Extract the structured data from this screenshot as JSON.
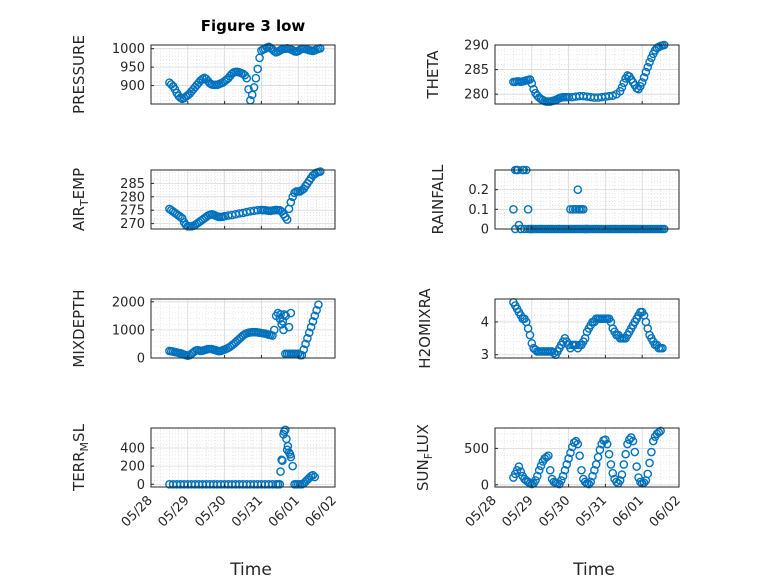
{
  "figure": {
    "title": "Figure 3 low",
    "xlabel": "Time",
    "x_tick_labels": [
      "05/28",
      "05/29",
      "05/30",
      "05/31",
      "06/01",
      "06/02"
    ],
    "marker_color": "#0072BD",
    "axis_color": "#262626",
    "grid_color": "#d8d8d8"
  },
  "chart_data": [
    {
      "type": "scatter",
      "ylabel": "PRESSURE",
      "title": "Figure 3 low",
      "ylim": [
        850,
        1010
      ],
      "yticks": [
        900,
        950,
        1000
      ],
      "grid": true,
      "x": [
        0.5,
        0.55,
        0.6,
        0.65,
        0.7,
        0.75,
        0.8,
        0.85,
        0.9,
        0.95,
        1.0,
        1.05,
        1.1,
        1.15,
        1.2,
        1.25,
        1.3,
        1.35,
        1.4,
        1.45,
        1.5,
        1.55,
        1.6,
        1.65,
        1.7,
        1.75,
        1.8,
        1.85,
        1.9,
        1.95,
        2.0,
        2.05,
        2.1,
        2.15,
        2.2,
        2.25,
        2.3,
        2.35,
        2.4,
        2.45,
        2.5,
        2.55,
        2.6,
        2.65,
        2.7,
        2.75,
        2.8,
        2.85,
        2.9,
        2.95,
        3.0,
        3.05,
        3.1,
        3.15,
        3.2,
        3.25,
        3.3,
        3.35,
        3.4,
        3.45,
        3.5,
        3.55,
        3.6,
        3.65,
        3.7,
        3.75,
        3.8,
        3.85,
        3.9,
        3.95,
        4.0,
        4.05,
        4.1,
        4.15,
        4.2,
        4.25,
        4.3,
        4.35,
        4.4,
        4.45,
        4.5,
        4.55,
        4.6
      ],
      "y": [
        908,
        903,
        898,
        890,
        880,
        872,
        867,
        864,
        866,
        870,
        874,
        878,
        884,
        890,
        896,
        902,
        908,
        914,
        918,
        921,
        918,
        912,
        906,
        903,
        902,
        902,
        902,
        904,
        906,
        908,
        912,
        916,
        920,
        926,
        932,
        936,
        937,
        937,
        936,
        934,
        932,
        928,
        920,
        890,
        860,
        875,
        895,
        920,
        945,
        975,
        995,
        998,
        1000,
        1003,
        1005,
        1002,
        998,
        993,
        990,
        992,
        995,
        998,
        1000,
        1000,
        1001,
        1000,
        998,
        996,
        993,
        992,
        994,
        997,
        1000,
        1000,
        999,
        998,
        996,
        995,
        994,
        996,
        998,
        1000,
        1001
      ]
    },
    {
      "type": "scatter",
      "ylabel": "THETA",
      "ylim": [
        278,
        290
      ],
      "yticks": [
        280,
        285,
        290
      ],
      "grid": true,
      "x": [
        0.5,
        0.55,
        0.6,
        0.65,
        0.7,
        0.75,
        0.8,
        0.85,
        0.9,
        0.95,
        1.0,
        1.05,
        1.1,
        1.15,
        1.2,
        1.25,
        1.3,
        1.35,
        1.4,
        1.45,
        1.5,
        1.55,
        1.6,
        1.65,
        1.7,
        1.75,
        1.8,
        1.85,
        1.9,
        1.95,
        2.0,
        2.1,
        2.2,
        2.3,
        2.4,
        2.5,
        2.6,
        2.7,
        2.8,
        2.9,
        3.0,
        3.1,
        3.2,
        3.3,
        3.4,
        3.45,
        3.5,
        3.55,
        3.6,
        3.65,
        3.7,
        3.75,
        3.8,
        3.85,
        3.9,
        3.95,
        4.0,
        4.05,
        4.1,
        4.15,
        4.2,
        4.25,
        4.3,
        4.35,
        4.4,
        4.45,
        4.5,
        4.55,
        4.6
      ],
      "y": [
        282.5,
        282.5,
        282.6,
        282.6,
        282.5,
        282.6,
        282.7,
        282.8,
        282.9,
        283.0,
        282.2,
        281.0,
        280.2,
        279.7,
        279.3,
        279.0,
        278.8,
        278.6,
        278.5,
        278.5,
        278.5,
        278.6,
        278.7,
        278.8,
        279.0,
        279.2,
        279.3,
        279.4,
        279.4,
        279.4,
        279.4,
        279.4,
        279.5,
        279.6,
        279.6,
        279.5,
        279.4,
        279.3,
        279.3,
        279.4,
        279.5,
        279.6,
        279.7,
        280.0,
        280.6,
        281.4,
        282.3,
        283.2,
        283.8,
        283.6,
        283.0,
        282.4,
        281.8,
        281.2,
        281.0,
        281.6,
        282.4,
        283.4,
        284.5,
        285.5,
        286.5,
        287.4,
        288.2,
        288.9,
        289.4,
        289.6,
        289.8,
        289.9,
        290.0
      ]
    },
    {
      "type": "scatter",
      "ylabel": "AIR_TEMP",
      "ylim": [
        268,
        290
      ],
      "yticks": [
        270,
        275,
        280,
        285
      ],
      "grid": true,
      "x": [
        0.5,
        0.55,
        0.6,
        0.65,
        0.7,
        0.75,
        0.8,
        0.85,
        0.9,
        0.95,
        1.0,
        1.05,
        1.1,
        1.15,
        1.2,
        1.25,
        1.3,
        1.35,
        1.4,
        1.45,
        1.5,
        1.55,
        1.6,
        1.65,
        1.7,
        1.75,
        1.8,
        1.85,
        1.9,
        1.95,
        2.0,
        2.1,
        2.2,
        2.3,
        2.4,
        2.5,
        2.6,
        2.7,
        2.8,
        2.9,
        3.0,
        3.05,
        3.1,
        3.15,
        3.2,
        3.25,
        3.3,
        3.35,
        3.4,
        3.45,
        3.5,
        3.55,
        3.6,
        3.65,
        3.7,
        3.75,
        3.8,
        3.85,
        3.9,
        3.95,
        4.0,
        4.05,
        4.1,
        4.15,
        4.2,
        4.25,
        4.3,
        4.35,
        4.4,
        4.45,
        4.5,
        4.55,
        4.6
      ],
      "y": [
        275.5,
        275.0,
        274.5,
        274.0,
        273.5,
        273.0,
        272.5,
        272.0,
        270.5,
        269.5,
        269.0,
        269.0,
        269.0,
        269.2,
        269.5,
        270.0,
        270.5,
        271.0,
        271.5,
        272.0,
        272.5,
        273.0,
        273.3,
        273.5,
        273.3,
        273.0,
        272.7,
        272.5,
        272.5,
        272.6,
        272.8,
        273.0,
        273.2,
        273.5,
        273.8,
        274.0,
        274.3,
        274.6,
        274.8,
        275.0,
        275.1,
        275.0,
        275.0,
        274.9,
        274.8,
        274.8,
        274.9,
        275.0,
        275.1,
        275.0,
        275.0,
        274.5,
        273.5,
        272.5,
        271.5,
        275.5,
        278.0,
        280.0,
        281.5,
        282.0,
        282.0,
        282.0,
        282.5,
        283.0,
        284.0,
        285.0,
        286.0,
        287.0,
        288.0,
        288.5,
        289.0,
        289.2,
        289.4
      ]
    },
    {
      "type": "scatter",
      "ylabel": "RAINFALL",
      "ylim": [
        0,
        0.3
      ],
      "yticks": [
        0,
        0.1,
        0.2
      ],
      "grid": true,
      "x": [
        0.5,
        0.55,
        0.6,
        0.65,
        0.7,
        0.75,
        0.8,
        0.85,
        0.9,
        0.95,
        1.0,
        1.05,
        1.1,
        1.15,
        1.2,
        1.25,
        1.3,
        1.35,
        1.4,
        1.45,
        1.5,
        1.55,
        1.6,
        1.65,
        1.7,
        1.75,
        1.8,
        1.85,
        1.9,
        1.95,
        2.0,
        2.05,
        2.1,
        2.15,
        2.2,
        2.25,
        2.3,
        2.35,
        2.4,
        2.45,
        2.5,
        2.55,
        2.6,
        2.65,
        2.7,
        2.75,
        2.8,
        2.85,
        2.9,
        2.95,
        3.0,
        3.05,
        3.1,
        3.15,
        3.2,
        3.25,
        3.3,
        3.35,
        3.4,
        3.45,
        3.5,
        3.55,
        3.6,
        3.65,
        3.7,
        3.75,
        3.8,
        3.85,
        3.9,
        3.95,
        4.0,
        4.05,
        4.1,
        4.15,
        4.2,
        4.25,
        4.3,
        4.35,
        4.4,
        4.45,
        4.5,
        4.55,
        4.6,
        0.55,
        0.62,
        0.7,
        0.78,
        0.9,
        0.98,
        1.0,
        2.05,
        2.12,
        2.18,
        2.22,
        2.25,
        2.28,
        2.3,
        2.35,
        2.4,
        2.45,
        2.5
      ],
      "y": [
        0.1,
        0.3,
        0.3,
        0.02,
        0.0,
        0.3,
        0.0,
        0.3,
        0.1,
        0.0,
        0.0,
        0.0,
        0.0,
        0.0,
        0.0,
        0.0,
        0.0,
        0.0,
        0.0,
        0.0,
        0.0,
        0.0,
        0.0,
        0.0,
        0.0,
        0.0,
        0.0,
        0.0,
        0.0,
        0.0,
        0.0,
        0.0,
        0.0,
        0.0,
        0.0,
        0.0,
        0.0,
        0.0,
        0.0,
        0.0,
        0.0,
        0.0,
        0.0,
        0.0,
        0.0,
        0.0,
        0.0,
        0.0,
        0.0,
        0.0,
        0.0,
        0.0,
        0.0,
        0.0,
        0.0,
        0.0,
        0.0,
        0.0,
        0.0,
        0.0,
        0.0,
        0.0,
        0.0,
        0.0,
        0.0,
        0.0,
        0.0,
        0.0,
        0.0,
        0.0,
        0.0,
        0.0,
        0.0,
        0.0,
        0.0,
        0.0,
        0.0,
        0.0,
        0.0,
        0.0,
        0.0,
        0.0,
        0.0,
        0.0,
        0.3,
        0.0,
        0.3,
        0.0,
        0.0,
        0.0,
        0.1,
        0.1,
        0.1,
        0.1,
        0.2,
        0.1,
        0.1,
        0.1,
        0.1,
        0.0,
        0.0
      ]
    },
    {
      "type": "scatter",
      "ylabel": "MIXDEPTH",
      "ylim": [
        0,
        2100
      ],
      "yticks": [
        0,
        1000,
        2000
      ],
      "grid": true,
      "x": [
        0.5,
        0.55,
        0.6,
        0.65,
        0.7,
        0.75,
        0.8,
        0.85,
        0.9,
        0.95,
        1.0,
        1.05,
        1.1,
        1.15,
        1.2,
        1.25,
        1.3,
        1.35,
        1.4,
        1.45,
        1.5,
        1.55,
        1.6,
        1.65,
        1.7,
        1.75,
        1.8,
        1.85,
        1.9,
        1.95,
        2.0,
        2.05,
        2.1,
        2.15,
        2.2,
        2.25,
        2.3,
        2.35,
        2.4,
        2.45,
        2.5,
        2.55,
        2.6,
        2.65,
        2.7,
        2.75,
        2.8,
        2.85,
        2.9,
        2.95,
        3.0,
        3.05,
        3.1,
        3.15,
        3.2,
        3.25,
        3.3,
        3.35,
        3.4,
        3.45,
        3.5,
        3.55,
        3.6,
        3.65,
        3.7,
        3.75,
        3.8,
        3.85,
        3.9,
        3.95,
        4.0,
        4.05,
        4.1,
        4.15,
        4.2,
        4.25,
        4.3,
        4.35,
        4.4,
        4.45,
        4.5,
        4.55,
        3.52,
        3.58,
        3.62,
        3.66,
        3.75,
        3.8
      ],
      "y": [
        250,
        240,
        230,
        210,
        200,
        180,
        170,
        150,
        120,
        100,
        80,
        100,
        150,
        200,
        250,
        280,
        270,
        250,
        260,
        280,
        300,
        320,
        320,
        320,
        300,
        280,
        260,
        240,
        250,
        280,
        300,
        330,
        360,
        400,
        450,
        500,
        560,
        620,
        680,
        740,
        800,
        850,
        880,
        900,
        910,
        920,
        920,
        920,
        910,
        900,
        890,
        880,
        870,
        850,
        830,
        820,
        800,
        1000,
        1500,
        1600,
        1400,
        1200,
        1000,
        150,
        150,
        150,
        150,
        150,
        150,
        150,
        150,
        100,
        100,
        300,
        500,
        700,
        900,
        1100,
        1300,
        1500,
        1700,
        1900,
        1550,
        1300,
        1550,
        1500,
        1100,
        1600
      ]
    },
    {
      "type": "scatter",
      "ylabel": "H2OMIXRA",
      "ylim": [
        2.9,
        4.7
      ],
      "yticks": [
        3,
        4
      ],
      "grid": true,
      "x": [
        0.5,
        0.55,
        0.6,
        0.65,
        0.7,
        0.75,
        0.8,
        0.85,
        0.9,
        0.95,
        1.0,
        1.05,
        1.1,
        1.15,
        1.2,
        1.25,
        1.3,
        1.35,
        1.4,
        1.45,
        1.5,
        1.55,
        1.6,
        1.65,
        1.7,
        1.75,
        1.8,
        1.85,
        1.9,
        1.95,
        2.0,
        2.05,
        2.1,
        2.15,
        2.2,
        2.25,
        2.3,
        2.35,
        2.4,
        2.45,
        2.5,
        2.55,
        2.6,
        2.65,
        2.7,
        2.75,
        2.8,
        2.85,
        2.9,
        2.95,
        3.0,
        3.05,
        3.1,
        3.15,
        3.2,
        3.25,
        3.3,
        3.35,
        3.4,
        3.45,
        3.5,
        3.55,
        3.6,
        3.65,
        3.7,
        3.75,
        3.8,
        3.85,
        3.9,
        3.95,
        4.0,
        4.05,
        4.1,
        4.15,
        4.2,
        4.25,
        4.3,
        4.35,
        4.4,
        4.45,
        4.5,
        4.55
      ],
      "y": [
        4.6,
        4.5,
        4.4,
        4.3,
        4.2,
        4.1,
        4.1,
        4.0,
        3.8,
        3.6,
        3.35,
        3.2,
        3.15,
        3.1,
        3.1,
        3.1,
        3.1,
        3.1,
        3.1,
        3.1,
        3.1,
        3.1,
        3.05,
        3.0,
        3.1,
        3.2,
        3.3,
        3.4,
        3.5,
        3.4,
        3.3,
        3.2,
        3.3,
        3.3,
        3.3,
        3.2,
        3.3,
        3.3,
        3.4,
        3.5,
        3.7,
        3.8,
        3.9,
        4.0,
        4.0,
        4.1,
        4.1,
        4.1,
        4.1,
        4.1,
        4.1,
        4.1,
        4.1,
        4.0,
        3.8,
        3.7,
        3.6,
        3.6,
        3.5,
        3.5,
        3.5,
        3.5,
        3.6,
        3.7,
        3.8,
        3.9,
        4.0,
        4.1,
        4.2,
        4.3,
        4.3,
        4.2,
        4.0,
        3.8,
        3.6,
        3.5,
        3.4,
        3.3,
        3.3,
        3.2,
        3.2,
        3.2
      ]
    },
    {
      "type": "scatter",
      "ylabel": "TERR_MSL",
      "ylim": [
        -30,
        620
      ],
      "yticks": [
        0,
        200,
        400
      ],
      "grid": true,
      "x": [
        0.5,
        0.6,
        0.7,
        0.8,
        0.9,
        1.0,
        1.1,
        1.2,
        1.3,
        1.4,
        1.5,
        1.6,
        1.7,
        1.8,
        1.9,
        2.0,
        2.1,
        2.2,
        2.3,
        2.4,
        2.5,
        2.6,
        2.7,
        2.8,
        2.9,
        3.0,
        3.1,
        3.2,
        3.3,
        3.4,
        3.45,
        3.5,
        3.52,
        3.55,
        3.57,
        3.6,
        3.62,
        3.65,
        3.68,
        3.7,
        3.72,
        3.75,
        3.78,
        3.8,
        3.85,
        3.9,
        3.95,
        4.0,
        4.05,
        4.1,
        4.15,
        4.2,
        4.25,
        4.3,
        4.35,
        4.4,
        4.45
      ],
      "y": [
        0,
        0,
        0,
        0,
        0,
        0,
        0,
        0,
        0,
        0,
        0,
        0,
        0,
        0,
        0,
        0,
        0,
        0,
        0,
        0,
        0,
        0,
        0,
        0,
        0,
        0,
        0,
        0,
        0,
        0,
        0,
        0,
        140,
        270,
        260,
        550,
        580,
        600,
        500,
        380,
        420,
        350,
        330,
        300,
        200,
        0,
        0,
        0,
        0,
        0,
        10,
        30,
        50,
        70,
        90,
        100,
        80
      ]
    },
    {
      "type": "scatter",
      "ylabel": "SUN_FLUX",
      "ylim": [
        -30,
        780
      ],
      "yticks": [
        0,
        500
      ],
      "grid": true,
      "x": [
        0.5,
        0.55,
        0.6,
        0.65,
        0.7,
        0.75,
        0.8,
        0.85,
        0.9,
        0.95,
        1.0,
        1.05,
        1.1,
        1.15,
        1.2,
        1.25,
        1.3,
        1.35,
        1.4,
        1.45,
        1.5,
        1.55,
        1.6,
        1.65,
        1.7,
        1.75,
        1.8,
        1.85,
        1.9,
        1.95,
        2.0,
        2.05,
        2.1,
        2.15,
        2.2,
        2.25,
        2.3,
        2.35,
        2.4,
        2.45,
        2.5,
        2.55,
        2.6,
        2.65,
        2.7,
        2.75,
        2.8,
        2.85,
        2.9,
        2.95,
        3.0,
        3.05,
        3.1,
        3.15,
        3.2,
        3.25,
        3.3,
        3.35,
        3.4,
        3.45,
        3.5,
        3.55,
        3.6,
        3.65,
        3.7,
        3.75,
        3.8,
        3.85,
        3.9,
        3.95,
        4.0,
        4.05,
        4.1,
        4.15,
        4.2,
        4.25,
        4.3,
        4.35,
        4.4,
        4.45,
        4.5
      ],
      "y": [
        100,
        150,
        200,
        250,
        180,
        120,
        80,
        60,
        40,
        20,
        10,
        20,
        60,
        120,
        200,
        260,
        320,
        360,
        380,
        400,
        200,
        80,
        40,
        30,
        20,
        10,
        60,
        120,
        200,
        280,
        360,
        440,
        520,
        580,
        600,
        560,
        400,
        200,
        80,
        40,
        20,
        10,
        40,
        120,
        200,
        280,
        380,
        480,
        560,
        610,
        620,
        560,
        420,
        280,
        160,
        80,
        40,
        20,
        60,
        140,
        280,
        420,
        560,
        620,
        650,
        600,
        450,
        250,
        100,
        40,
        20,
        30,
        60,
        150,
        300,
        450,
        600,
        660,
        700,
        720,
        740
      ]
    }
  ]
}
